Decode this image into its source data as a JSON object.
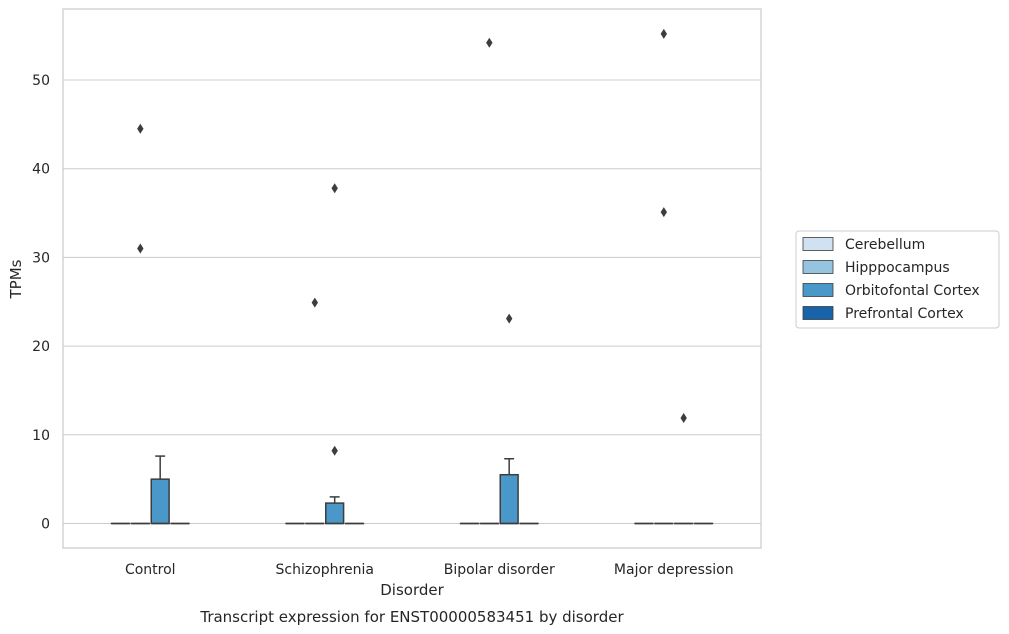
{
  "chart_data": {
    "type": "box",
    "title": "",
    "caption": "Transcript expression for ENST00000583451 by disorder",
    "xlabel": "Disorder",
    "ylabel": "TPMs",
    "ylim": [
      -2.7,
      57.6
    ],
    "yticks": [
      0,
      10,
      20,
      30,
      40,
      50
    ],
    "grid": "horizontal",
    "legend_position": "right",
    "categories": [
      "Control",
      "Schizophrenia",
      "Bipolar disorder",
      "Major depression"
    ],
    "series": [
      {
        "name": "Cerebellum",
        "color": "#d0e1f2",
        "boxes": [
          {
            "q1": 0,
            "median": 0,
            "q3": 0,
            "whislo": 0,
            "whishi": 0,
            "outliers": []
          },
          {
            "q1": 0,
            "median": 0,
            "q3": 0,
            "whislo": 0,
            "whishi": 0,
            "outliers": []
          },
          {
            "q1": 0,
            "median": 0,
            "q3": 0,
            "whislo": 0,
            "whishi": 0,
            "outliers": []
          },
          {
            "q1": 0,
            "median": 0,
            "q3": 0,
            "whislo": 0,
            "whishi": 0,
            "outliers": []
          }
        ]
      },
      {
        "name": "Hipppocampus",
        "color": "#94c4df",
        "boxes": [
          {
            "q1": 0,
            "median": 0,
            "q3": 0,
            "whislo": 0,
            "whishi": 0,
            "outliers": [
              44.5,
              31.0
            ]
          },
          {
            "q1": 0,
            "median": 0,
            "q3": 0,
            "whislo": 0,
            "whishi": 0,
            "outliers": [
              24.9
            ]
          },
          {
            "q1": 0,
            "median": 0,
            "q3": 0,
            "whislo": 0,
            "whishi": 0,
            "outliers": [
              54.2
            ]
          },
          {
            "q1": 0,
            "median": 0,
            "q3": 0,
            "whislo": 0,
            "whishi": 0,
            "outliers": [
              55.2,
              35.1
            ]
          }
        ]
      },
      {
        "name": "Orbitofontal Cortex",
        "color": "#4a98c9",
        "boxes": [
          {
            "q1": 0,
            "median": 0,
            "q3": 5.0,
            "whislo": 0,
            "whishi": 7.6,
            "outliers": []
          },
          {
            "q1": 0,
            "median": 0,
            "q3": 2.3,
            "whislo": 0,
            "whishi": 3.0,
            "outliers": [
              37.8,
              8.2
            ]
          },
          {
            "q1": 0,
            "median": 0,
            "q3": 5.5,
            "whislo": 0,
            "whishi": 7.3,
            "outliers": [
              23.1
            ]
          },
          {
            "q1": 0,
            "median": 0,
            "q3": 0,
            "whislo": 0,
            "whishi": 0,
            "outliers": [
              11.9
            ]
          }
        ]
      },
      {
        "name": "Prefrontal Cortex",
        "color": "#1764ab",
        "boxes": [
          {
            "q1": 0,
            "median": 0,
            "q3": 0,
            "whislo": 0,
            "whishi": 0,
            "outliers": []
          },
          {
            "q1": 0,
            "median": 0,
            "q3": 0,
            "whislo": 0,
            "whishi": 0,
            "outliers": []
          },
          {
            "q1": 0,
            "median": 0,
            "q3": 0,
            "whislo": 0,
            "whishi": 0,
            "outliers": []
          },
          {
            "q1": 0,
            "median": 0,
            "q3": 0,
            "whislo": 0,
            "whishi": 0,
            "outliers": []
          }
        ]
      }
    ],
    "colors": {
      "grid": "#cccccc",
      "frame": "#cccccc",
      "line": "#3d3d3d",
      "outlier": "#3d3d3d"
    }
  }
}
